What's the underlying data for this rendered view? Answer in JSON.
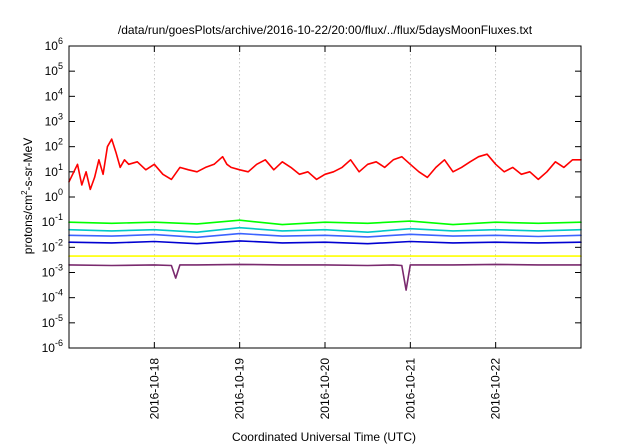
{
  "chart_data": {
    "type": "line",
    "title": "/data/run/goesPlots/archive/2016-10-22/20:00/flux/../flux/5daysMoonFluxes.txt",
    "xlabel": "Coordinated Universal Time (UTC)",
    "ylabel_main": "protons/cm",
    "ylabel_sup": "2",
    "ylabel_tail": "-s-sr-MeV",
    "y_scale": "log",
    "ylim": [
      1e-06,
      1000000
    ],
    "xlim": [
      0,
      6
    ],
    "x_ticks": [
      {
        "x": 1,
        "label": "2016-10-18"
      },
      {
        "x": 2,
        "label": "2016-10-19"
      },
      {
        "x": 3,
        "label": "2016-10-20"
      },
      {
        "x": 4,
        "label": "2016-10-21"
      },
      {
        "x": 5,
        "label": "2016-10-22"
      }
    ],
    "y_ticks": [
      {
        "value": 1e-06,
        "base": "10",
        "exp": "-6"
      },
      {
        "value": 1e-05,
        "base": "10",
        "exp": "-5"
      },
      {
        "value": 0.0001,
        "base": "10",
        "exp": "-4"
      },
      {
        "value": 0.001,
        "base": "10",
        "exp": "-3"
      },
      {
        "value": 0.01,
        "base": "10",
        "exp": "-2"
      },
      {
        "value": 0.1,
        "base": "10",
        "exp": "-1"
      },
      {
        "value": 1,
        "base": "10",
        "exp": "0"
      },
      {
        "value": 10,
        "base": "10",
        "exp": "1"
      },
      {
        "value": 100,
        "base": "10",
        "exp": "2"
      },
      {
        "value": 1000,
        "base": "10",
        "exp": "3"
      },
      {
        "value": 10000,
        "base": "10",
        "exp": "4"
      },
      {
        "value": 100000,
        "base": "10",
        "exp": "5"
      },
      {
        "value": 1000000,
        "base": "10",
        "exp": "6"
      }
    ],
    "grid": true,
    "series": [
      {
        "color": "#ff0000",
        "x": [
          0,
          0.1,
          0.15,
          0.2,
          0.25,
          0.3,
          0.35,
          0.4,
          0.45,
          0.5,
          0.55,
          0.6,
          0.65,
          0.7,
          0.8,
          0.9,
          1,
          1.1,
          1.2,
          1.3,
          1.4,
          1.5,
          1.6,
          1.7,
          1.8,
          1.85,
          1.9,
          2,
          2.1,
          2.2,
          2.3,
          2.4,
          2.5,
          2.6,
          2.7,
          2.8,
          2.9,
          3,
          3.1,
          3.2,
          3.3,
          3.4,
          3.5,
          3.6,
          3.7,
          3.8,
          3.9,
          4,
          4.1,
          4.2,
          4.3,
          4.4,
          4.5,
          4.6,
          4.7,
          4.8,
          4.9,
          5,
          5.1,
          5.2,
          5.3,
          5.4,
          5.5,
          5.6,
          5.7,
          5.8,
          5.9,
          6
        ],
        "y": [
          4,
          20,
          3,
          10,
          2,
          6,
          30,
          8,
          100,
          200,
          60,
          15,
          30,
          20,
          25,
          12,
          20,
          8,
          5,
          15,
          12,
          10,
          15,
          20,
          40,
          20,
          15,
          12,
          10,
          20,
          30,
          12,
          25,
          15,
          8,
          10,
          5,
          8,
          10,
          15,
          30,
          10,
          20,
          25,
          15,
          30,
          40,
          20,
          10,
          6,
          15,
          30,
          10,
          15,
          25,
          40,
          50,
          20,
          10,
          15,
          8,
          10,
          5,
          10,
          25,
          15,
          30,
          30
        ]
      },
      {
        "color": "#00ff00",
        "x": [
          0,
          0.5,
          1,
          1.5,
          2,
          2.5,
          3,
          3.5,
          4,
          4.5,
          5,
          5.5,
          6
        ],
        "y": [
          0.1,
          0.09,
          0.1,
          0.085,
          0.12,
          0.08,
          0.1,
          0.09,
          0.11,
          0.08,
          0.1,
          0.09,
          0.1
        ]
      },
      {
        "color": "#00c8c8",
        "x": [
          0,
          0.5,
          1,
          1.5,
          2,
          2.5,
          3,
          3.5,
          4,
          4.5,
          5,
          5.5,
          6
        ],
        "y": [
          0.05,
          0.045,
          0.05,
          0.04,
          0.06,
          0.045,
          0.05,
          0.04,
          0.055,
          0.045,
          0.05,
          0.045,
          0.05
        ]
      },
      {
        "color": "#3c64ff",
        "x": [
          0,
          0.5,
          1,
          1.5,
          2,
          2.5,
          3,
          3.5,
          4,
          4.5,
          5,
          5.5,
          6
        ],
        "y": [
          0.03,
          0.028,
          0.032,
          0.025,
          0.035,
          0.028,
          0.03,
          0.026,
          0.033,
          0.028,
          0.03,
          0.027,
          0.03
        ]
      },
      {
        "color": "#0000d0",
        "x": [
          0,
          0.5,
          1,
          1.5,
          2,
          2.5,
          3,
          3.5,
          4,
          4.5,
          5,
          5.5,
          6
        ],
        "y": [
          0.016,
          0.015,
          0.017,
          0.014,
          0.018,
          0.015,
          0.016,
          0.014,
          0.017,
          0.015,
          0.016,
          0.015,
          0.016
        ]
      },
      {
        "color": "#ffff00",
        "x": [
          0,
          0.5,
          1,
          1.5,
          2,
          2.5,
          3,
          3.5,
          4,
          4.5,
          5,
          5.5,
          6
        ],
        "y": [
          0.0045,
          0.0045,
          0.0045,
          0.0045,
          0.0045,
          0.0045,
          0.0045,
          0.0045,
          0.0045,
          0.0045,
          0.0045,
          0.0045,
          0.0045
        ]
      },
      {
        "color": "#7a2a6e",
        "x": [
          0,
          0.5,
          1,
          1.2,
          1.25,
          1.3,
          1.5,
          2,
          2.5,
          3,
          3.5,
          3.8,
          3.9,
          3.95,
          4,
          4.5,
          5,
          5.5,
          6
        ],
        "y": [
          0.002,
          0.0019,
          0.002,
          0.0019,
          0.0006,
          0.002,
          0.002,
          0.0021,
          0.002,
          0.002,
          0.0019,
          0.002,
          0.0019,
          0.0002,
          0.002,
          0.002,
          0.0021,
          0.002,
          0.002
        ]
      }
    ]
  }
}
